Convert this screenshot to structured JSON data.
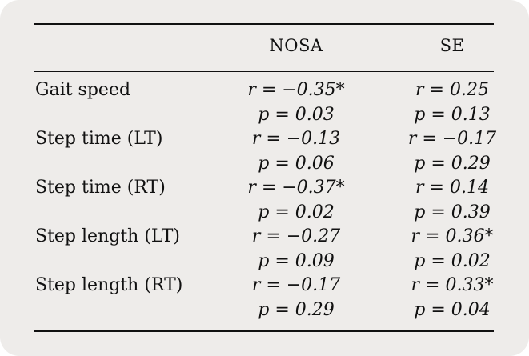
{
  "table": {
    "columns": [
      "",
      "NOSA",
      "SE"
    ],
    "rows": [
      {
        "label": "Gait speed",
        "nosa": "r = −0.35*",
        "se": "r = 0.25"
      },
      {
        "label": "",
        "nosa": "p = 0.03",
        "se": "p = 0.13"
      },
      {
        "label": "Step time (LT)",
        "nosa": "r = −0.13",
        "se": "r = −0.17"
      },
      {
        "label": "",
        "nosa": "p = 0.06",
        "se": "p = 0.29"
      },
      {
        "label": "Step time (RT)",
        "nosa": "r = −0.37*",
        "se": "r = 0.14"
      },
      {
        "label": "",
        "nosa": "p = 0.02",
        "se": "p = 0.39"
      },
      {
        "label": "Step length (LT)",
        "nosa": "r = −0.27",
        "se": "r = 0.36*"
      },
      {
        "label": "",
        "nosa": "p = 0.09",
        "se": "p = 0.02"
      },
      {
        "label": "Step length (RT)",
        "nosa": "r = −0.17",
        "se": "r = 0.33*"
      },
      {
        "label": "",
        "nosa": "p = 0.29",
        "se": "p = 0.04"
      }
    ]
  }
}
